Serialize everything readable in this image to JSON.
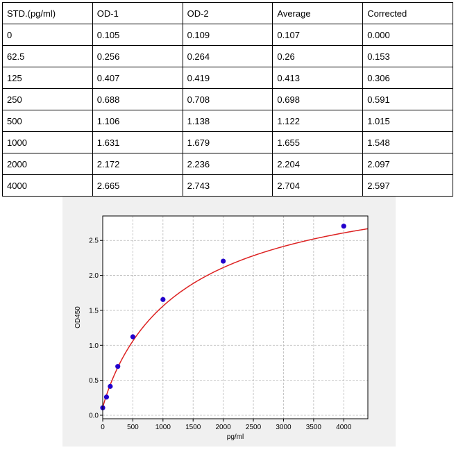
{
  "table": {
    "headers": [
      "STD.(pg/ml)",
      "OD-1",
      "OD-2",
      "Average",
      "Corrected"
    ],
    "rows": [
      [
        "0",
        "0.105",
        "0.109",
        "0.107",
        "0.000"
      ],
      [
        "62.5",
        "0.256",
        "0.264",
        "0.26",
        "0.153"
      ],
      [
        "125",
        "0.407",
        "0.419",
        "0.413",
        "0.306"
      ],
      [
        "250",
        "0.688",
        "0.708",
        "0.698",
        "0.591"
      ],
      [
        "500",
        "1.106",
        "1.138",
        "1.122",
        "1.015"
      ],
      [
        "1000",
        "1.631",
        "1.679",
        "1.655",
        "1.548"
      ],
      [
        "2000",
        "2.172",
        "2.236",
        "2.204",
        "2.097"
      ],
      [
        "4000",
        "2.665",
        "2.743",
        "2.704",
        "2.597"
      ]
    ]
  },
  "chart_data": {
    "type": "scatter",
    "xlabel": "pg/ml",
    "ylabel": "OD450",
    "xlim": [
      0,
      4400
    ],
    "ylim": [
      -0.05,
      2.85
    ],
    "x_ticks": [
      0,
      500,
      1000,
      1500,
      2000,
      2500,
      3000,
      3500,
      4000
    ],
    "y_ticks": [
      0.0,
      0.5,
      1.0,
      1.5,
      2.0,
      2.5
    ],
    "grid": true,
    "series": [
      {
        "x": [
          0,
          62.5,
          125,
          250,
          500,
          1000,
          2000,
          4000
        ],
        "values": [
          0.107,
          0.26,
          0.413,
          0.698,
          1.122,
          1.655,
          2.204,
          2.704
        ],
        "color": "#2200cc"
      }
    ],
    "fit_color": "#dd2222"
  }
}
